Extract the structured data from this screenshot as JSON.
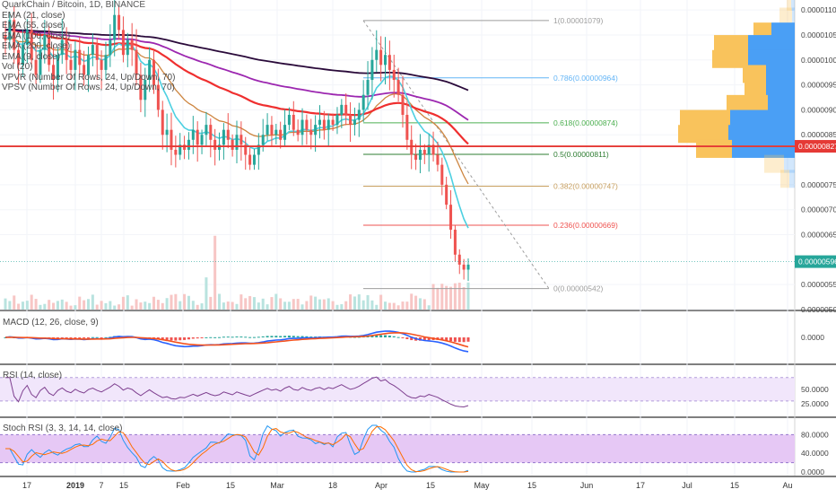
{
  "symbol_line": "QuarkChain / Bitcoin, 1D, BINANCE",
  "indicators": [
    "EMA (21, close)",
    "EMA (55, close)",
    "EMA (100, close)",
    "EMA (200, close)",
    "EMA (9, close)",
    "Vol (20)",
    "VPVR (Number Of Rows, 24, Up/Down, 70)",
    "VPSV (Number Of Rows, 24, Up/Down, 70)"
  ],
  "panes": {
    "macd_label": "MACD (12, 26, close, 9)",
    "rsi_label": "RSI (14, close)",
    "stoch_label": "Stoch RSI (3, 3, 14, 14, close)"
  },
  "colors": {
    "up": "#26a69a",
    "down": "#ef5350",
    "ema21": "#cd853f",
    "ema55": "#ef2f2f",
    "ema100": "#9c27b0",
    "ema200": "#2a0a3a",
    "ema9": "#4dd0e1",
    "vpvr_up": "#4a9ff5",
    "vpvr_down": "#f9c35c",
    "macd_line": "#2962ff",
    "signal_line": "#f4511e",
    "rsi_line": "#7e3f8f",
    "stoch_k": "#2196f3",
    "stoch_d": "#ff6d00",
    "rsi_band": "#f1e6fb",
    "stoch_band": "#e6c8f5"
  },
  "chart_data": {
    "type": "candlestick",
    "x_ticks": [
      "17",
      "2019",
      "7",
      "15",
      "Feb",
      "15",
      "Mar",
      "18",
      "Apr",
      "15",
      "May",
      "15",
      "Jun",
      "17",
      "Jul",
      "15",
      "Au"
    ],
    "price_ticks": [
      "0.00001100",
      "0.00001050",
      "0.00001000",
      "0.00000950",
      "0.00000900",
      "0.00000850",
      "0.00000750",
      "0.00000700",
      "0.00000650",
      "0.00000550",
      "0.00000500"
    ],
    "ylim": [
      5e-06,
      1.12e-05
    ],
    "horizontal_line": {
      "value": 8.27e-06,
      "label": "0.00000827"
    },
    "last_price": {
      "value": 5.96e-06,
      "label": "0.00000596"
    },
    "fib_levels": [
      {
        "ratio": "1",
        "label": "1(0.00001079)",
        "value": 1.079e-05
      },
      {
        "ratio": "0.786",
        "label": "0.786(0.00000964)",
        "value": 9.64e-06
      },
      {
        "ratio": "0.618",
        "label": "0.618(0.00000874)",
        "value": 8.74e-06
      },
      {
        "ratio": "0.5",
        "label": "0.5(0.00000811)",
        "value": 8.11e-06
      },
      {
        "ratio": "0.382",
        "label": "0.382(0.00000747)",
        "value": 7.47e-06
      },
      {
        "ratio": "0.236",
        "label": "0.236(0.00000669)",
        "value": 6.69e-06
      },
      {
        "ratio": "0",
        "label": "0(0.00000542)",
        "value": 5.42e-06
      }
    ],
    "macd_ticks": [
      "0.0000"
    ],
    "rsi_ticks": [
      "50.0000",
      "25.0000"
    ],
    "stoch_ticks": [
      "80.0000",
      "40.0000",
      "0.0000"
    ],
    "close_series": [
      1.04e-05,
      1.08e-05,
      1.02e-05,
      9.9e-06,
      1.03e-05,
      1.06e-05,
      1e-05,
      9.7e-06,
      1.02e-05,
      1.05e-05,
      9.9e-06,
      9.6e-06,
      1.01e-05,
      1.04e-05,
      1e-05,
      9.8e-06,
      1.02e-05,
      9.9e-06,
      9.7e-06,
      1.01e-05,
      1.03e-05,
      1e-05,
      9.8e-06,
      1.01e-05,
      1.04e-05,
      1.09e-05,
      1.06e-05,
      1.01e-05,
      1.04e-05,
      1.02e-05,
      9.7e-06,
      9.2e-06,
      9.6e-06,
      1e-05,
      9.5e-06,
      9e-06,
      8.5e-06,
      8.6e-06,
      8.2e-06,
      8.1e-06,
      8.3e-06,
      8.2e-06,
      8.4e-06,
      8.6e-06,
      8.3e-06,
      8.5e-06,
      8.7e-06,
      8.4e-06,
      8.2e-06,
      8.3e-06,
      8.6e-06,
      8.4e-06,
      8.2e-06,
      8.5e-06,
      8.3e-06,
      8.1e-06,
      7.9e-06,
      8.1e-06,
      8.3e-06,
      8.5e-06,
      8.7e-06,
      8.5e-06,
      8.6e-06,
      8.4e-06,
      8.7e-06,
      8.9e-06,
      8.6e-06,
      8.5e-06,
      8.8e-06,
      8.6e-06,
      8.5e-06,
      8.7e-06,
      8.8e-06,
      8.6e-06,
      8.8e-06,
      8.7e-06,
      8.9e-06,
      9.1e-06,
      8.9e-06,
      8.7e-06,
      8.8e-06,
      9e-06,
      9.3e-06,
      9.6e-06,
      1e-05,
      1.02e-05,
      9.9e-06,
      1.01e-05,
      9.8e-06,
      9.6e-06,
      9.3e-06,
      8.9e-06,
      8.4e-06,
      8.1e-06,
      8e-06,
      8.2e-06,
      8.1e-06,
      8.3e-06,
      8.1e-06,
      7.9e-06,
      7.5e-06,
      7.1e-06,
      6.6e-06,
      6.1e-06,
      5.9e-06,
      5.8e-06,
      5.9e-06
    ]
  }
}
